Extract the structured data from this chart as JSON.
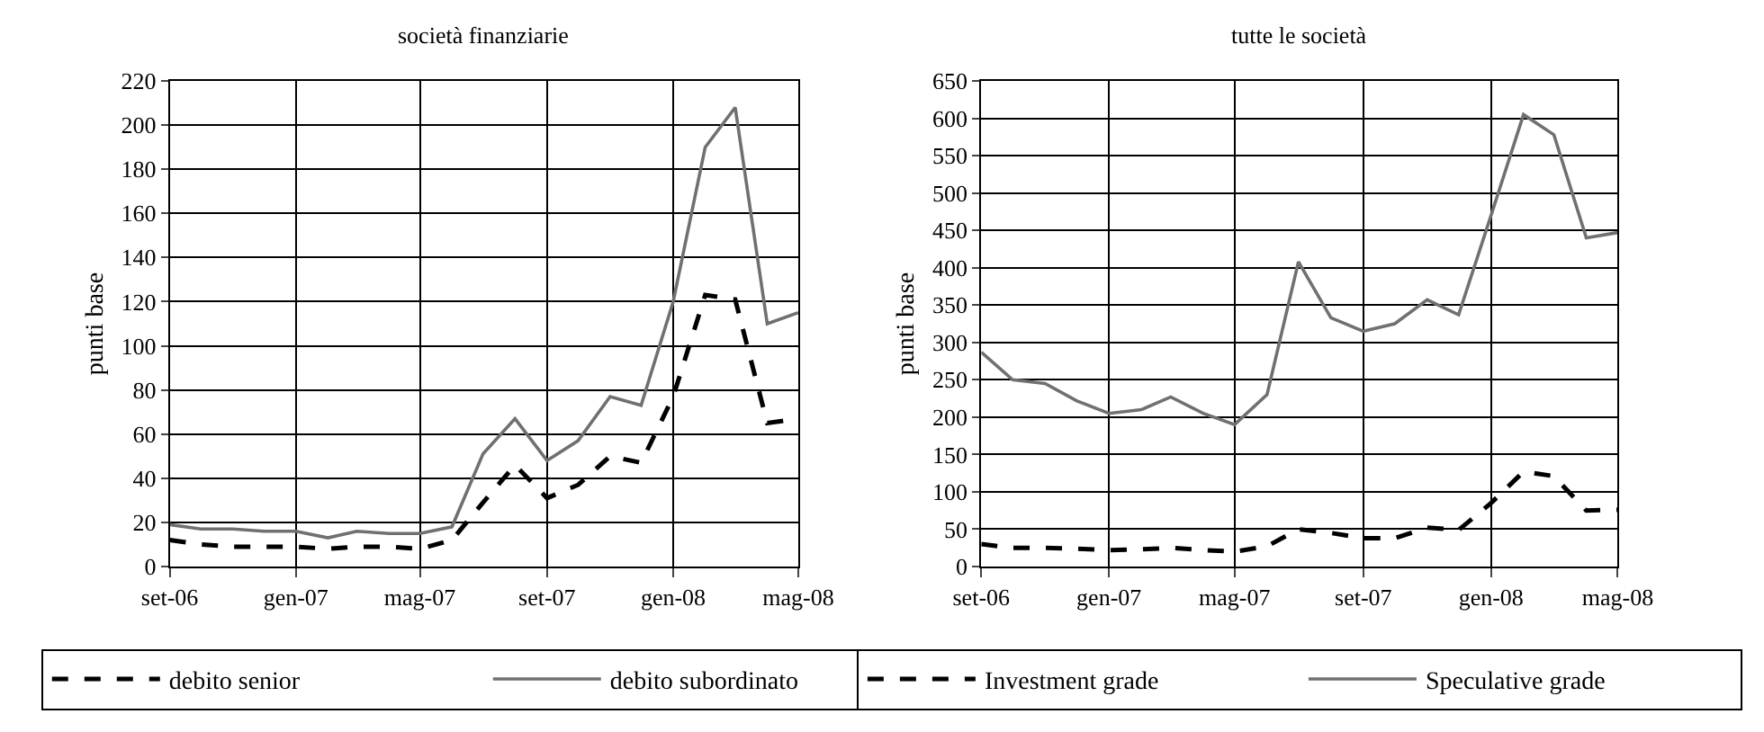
{
  "chart_data": [
    {
      "type": "line",
      "title": "società finanziarie",
      "ylabel": "punti base",
      "x": [
        "2006-09",
        "2006-10",
        "2006-11",
        "2006-12",
        "2007-01",
        "2007-02",
        "2007-03",
        "2007-04",
        "2007-05",
        "2007-06",
        "2007-07",
        "2007-08",
        "2007-09",
        "2007-10",
        "2007-11",
        "2007-12",
        "2008-01",
        "2008-02",
        "2008-03",
        "2008-04",
        "2008-05"
      ],
      "series": [
        {
          "name": "debito senior",
          "color": "#000000",
          "line_style": "dashed",
          "values": [
            12,
            10,
            9,
            9,
            9,
            8,
            9,
            9,
            8,
            12,
            29,
            46,
            31,
            37,
            50,
            47,
            77,
            123,
            121,
            65,
            67
          ]
        },
        {
          "name": "debito subordinato",
          "color": "#707070",
          "line_style": "solid",
          "values": [
            19,
            17,
            17,
            16,
            16,
            13,
            16,
            15,
            15,
            18,
            51,
            67,
            48,
            57,
            77,
            73,
            120,
            190,
            208,
            110,
            115
          ]
        }
      ],
      "xlim": [
        "2006-09",
        "2008-05"
      ],
      "xticks": [
        {
          "value": "2006-09",
          "label": "set-06"
        },
        {
          "value": "2007-01",
          "label": "gen-07"
        },
        {
          "value": "2007-05",
          "label": "mag-07"
        },
        {
          "value": "2007-09",
          "label": "set-07"
        },
        {
          "value": "2008-01",
          "label": "gen-08"
        },
        {
          "value": "2008-05",
          "label": "mag-08"
        }
      ],
      "ylim": [
        0,
        220
      ],
      "yticks": [
        0,
        20,
        40,
        60,
        80,
        100,
        120,
        140,
        160,
        180,
        200,
        220
      ],
      "grid": true,
      "legend": "bottom"
    },
    {
      "type": "line",
      "title": "tutte le società",
      "ylabel": "punti base",
      "x": [
        "2006-09",
        "2006-10",
        "2006-11",
        "2006-12",
        "2007-01",
        "2007-02",
        "2007-03",
        "2007-04",
        "2007-05",
        "2007-06",
        "2007-07",
        "2007-08",
        "2007-09",
        "2007-10",
        "2007-11",
        "2007-12",
        "2008-01",
        "2008-02",
        "2008-03",
        "2008-04",
        "2008-05"
      ],
      "series": [
        {
          "name": "Investment grade",
          "color": "#000000",
          "line_style": "dashed",
          "values": [
            30,
            25,
            25,
            24,
            22,
            23,
            25,
            22,
            20,
            27,
            50,
            45,
            38,
            38,
            52,
            49,
            85,
            127,
            121,
            75,
            76
          ]
        },
        {
          "name": "Speculative grade",
          "color": "#707070",
          "line_style": "solid",
          "values": [
            287,
            250,
            245,
            222,
            205,
            210,
            227,
            205,
            190,
            230,
            408,
            333,
            315,
            325,
            357,
            337,
            470,
            605,
            578,
            440,
            447
          ]
        }
      ],
      "xlim": [
        "2006-09",
        "2008-05"
      ],
      "xticks": [
        {
          "value": "2006-09",
          "label": "set-06"
        },
        {
          "value": "2007-01",
          "label": "gen-07"
        },
        {
          "value": "2007-05",
          "label": "mag-07"
        },
        {
          "value": "2007-09",
          "label": "set-07"
        },
        {
          "value": "2008-01",
          "label": "gen-08"
        },
        {
          "value": "2008-05",
          "label": "mag-08"
        }
      ],
      "ylim": [
        0,
        650
      ],
      "yticks": [
        0,
        50,
        100,
        150,
        200,
        250,
        300,
        350,
        400,
        450,
        500,
        550,
        600,
        650
      ],
      "grid": true,
      "legend": "bottom"
    }
  ]
}
